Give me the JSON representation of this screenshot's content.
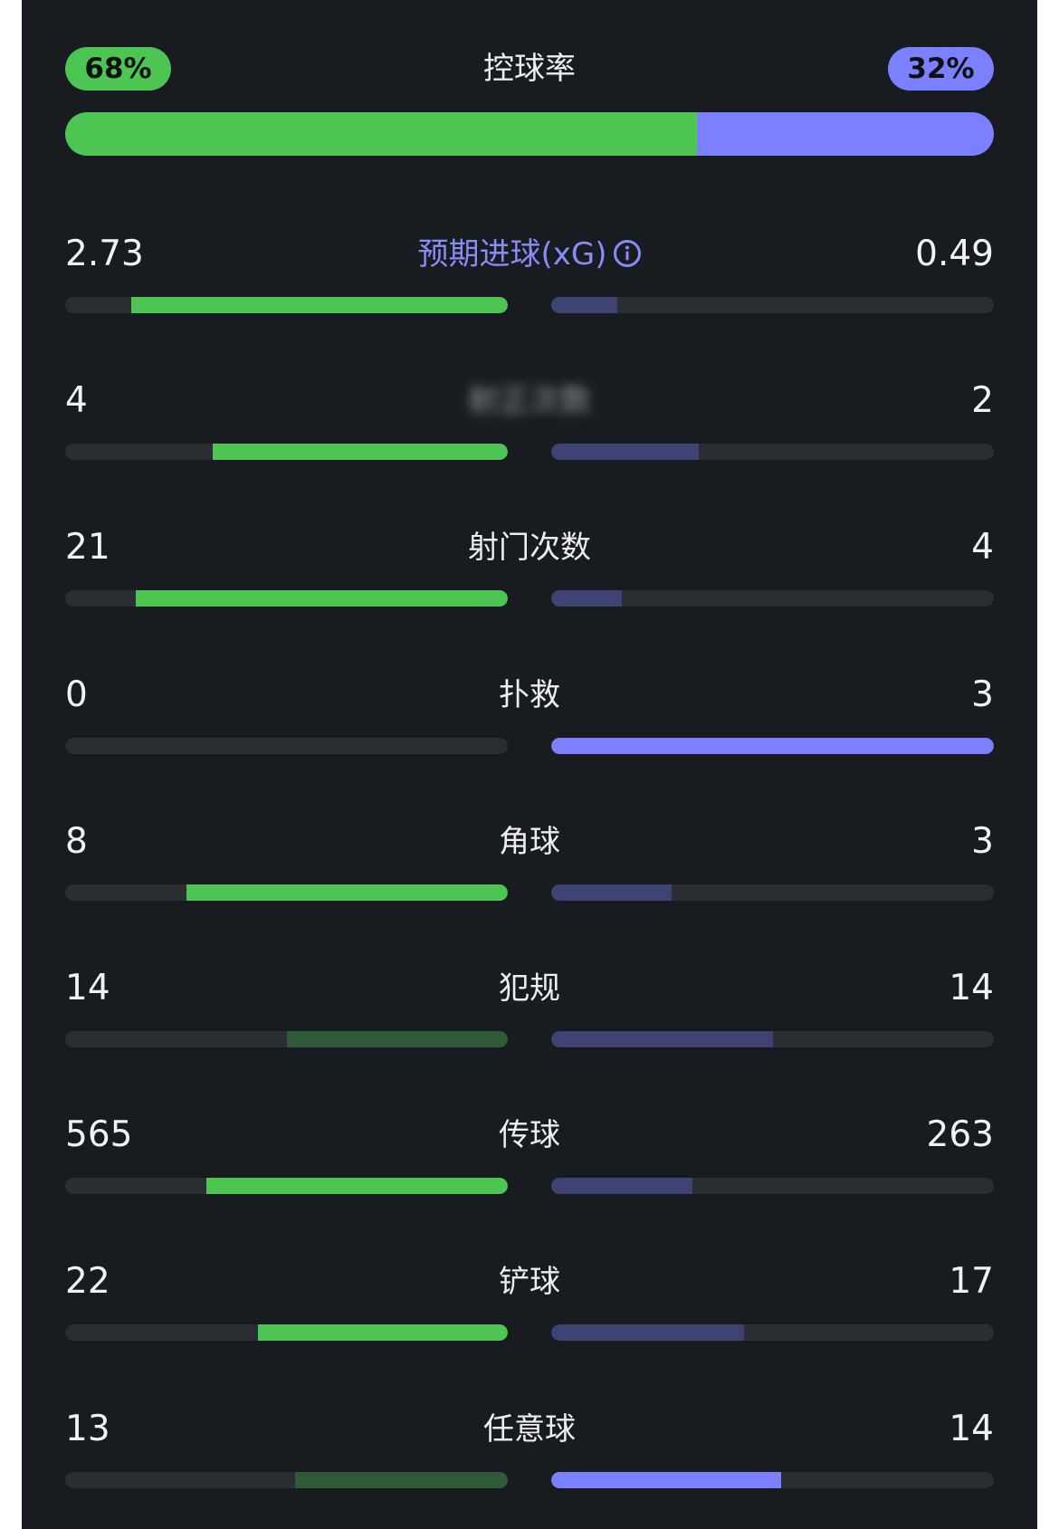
{
  "colors": {
    "home": "#4cc552",
    "home_dim": "#2f5a38",
    "away": "#7b80ff",
    "away_dim": "#3f4374",
    "track": "#2a2e33"
  },
  "possession": {
    "label": "控球率",
    "home": "68%",
    "away": "32%",
    "home_fraction": 0.68,
    "away_fraction": 0.32
  },
  "stats": [
    {
      "key": "xg",
      "label": "预期进球(xG)",
      "home": "2.73",
      "away": "0.49",
      "home_fraction": 0.85,
      "away_fraction": 0.15,
      "home_style": "home",
      "away_style": "away_dim",
      "info_icon": "info-icon",
      "label_style": "xg"
    },
    {
      "key": "blurred",
      "label": "射正次数",
      "home": "4",
      "away": "2",
      "home_fraction": 0.667,
      "away_fraction": 0.333,
      "home_style": "home",
      "away_style": "away_dim",
      "label_style": "blurred"
    },
    {
      "key": "shots",
      "label": "射门次数",
      "home": "21",
      "away": "4",
      "home_fraction": 0.84,
      "away_fraction": 0.16,
      "home_style": "home",
      "away_style": "away_dim"
    },
    {
      "key": "saves",
      "label": "扑救",
      "home": "0",
      "away": "3",
      "home_fraction": 0.0,
      "away_fraction": 1.0,
      "home_style": "home",
      "away_style": "away"
    },
    {
      "key": "corners",
      "label": "角球",
      "home": "8",
      "away": "3",
      "home_fraction": 0.727,
      "away_fraction": 0.273,
      "home_style": "home",
      "away_style": "away_dim"
    },
    {
      "key": "fouls",
      "label": "犯规",
      "home": "14",
      "away": "14",
      "home_fraction": 0.5,
      "away_fraction": 0.5,
      "home_style": "home_dim",
      "away_style": "away_dim"
    },
    {
      "key": "passes",
      "label": "传球",
      "home": "565",
      "away": "263",
      "home_fraction": 0.682,
      "away_fraction": 0.318,
      "home_style": "home",
      "away_style": "away_dim"
    },
    {
      "key": "tackles",
      "label": "铲球",
      "home": "22",
      "away": "17",
      "home_fraction": 0.564,
      "away_fraction": 0.436,
      "home_style": "home",
      "away_style": "away_dim"
    },
    {
      "key": "freekicks",
      "label": "任意球",
      "home": "13",
      "away": "14",
      "home_fraction": 0.481,
      "away_fraction": 0.519,
      "home_style": "home_dim",
      "away_style": "away"
    }
  ]
}
